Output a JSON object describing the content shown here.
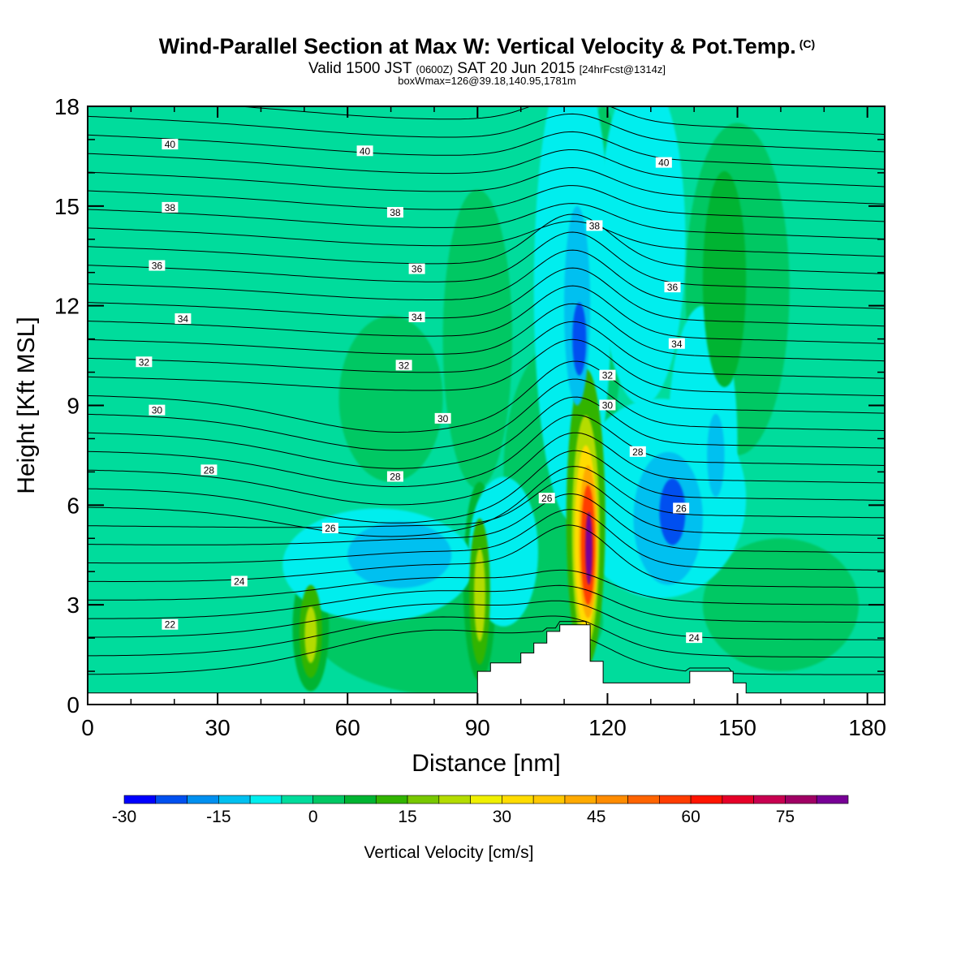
{
  "header": {
    "title": "Wind-Parallel Section at Max W: Vertical Velocity & Pot.Temp.",
    "title_mark": "(C)",
    "subtitle_part1": "Valid 1500 JST",
    "subtitle_utc": "(0600Z)",
    "subtitle_part2": "SAT 20 Jun 2015",
    "subtitle_fcst": "[24hrFcst@1314z]",
    "subtitle2": "boxWmax=126@39.18,140.95,1781m"
  },
  "chart_data": {
    "type": "heatmap",
    "xlabel": "Distance [nm]",
    "ylabel": "Height [Kft MSL]",
    "xlim": [
      0,
      184
    ],
    "ylim": [
      0,
      18
    ],
    "x_ticks": [
      0,
      30,
      60,
      90,
      120,
      150,
      180
    ],
    "y_ticks": [
      0,
      3,
      6,
      9,
      12,
      15,
      18
    ],
    "grid": false,
    "background_value_color": "#00dc9c",
    "colorbar": {
      "label": "Vertical Velocity [cm/s]",
      "tick_labels": [
        "-30",
        "-15",
        "0",
        "15",
        "30",
        "45",
        "60",
        "75"
      ],
      "tick_values": [
        -30,
        -15,
        0,
        15,
        30,
        45,
        60,
        75
      ],
      "range": [
        -30,
        85
      ],
      "bins": [
        {
          "from": -30,
          "to": -25,
          "color": "#0000ff"
        },
        {
          "from": -25,
          "to": -20,
          "color": "#0050f0"
        },
        {
          "from": -20,
          "to": -15,
          "color": "#0090f0"
        },
        {
          "from": -15,
          "to": -10,
          "color": "#00c0f0"
        },
        {
          "from": -10,
          "to": -5,
          "color": "#00eeee"
        },
        {
          "from": -5,
          "to": 0,
          "color": "#00dc9c"
        },
        {
          "from": 0,
          "to": 5,
          "color": "#00c864"
        },
        {
          "from": 5,
          "to": 10,
          "color": "#00b432"
        },
        {
          "from": 10,
          "to": 15,
          "color": "#32b400"
        },
        {
          "from": 15,
          "to": 20,
          "color": "#78c800"
        },
        {
          "from": 20,
          "to": 25,
          "color": "#b4dc00"
        },
        {
          "from": 25,
          "to": 30,
          "color": "#f0f000"
        },
        {
          "from": 30,
          "to": 35,
          "color": "#ffdc00"
        },
        {
          "from": 35,
          "to": 40,
          "color": "#ffc800"
        },
        {
          "from": 40,
          "to": 45,
          "color": "#ffaa00"
        },
        {
          "from": 45,
          "to": 50,
          "color": "#ff8c00"
        },
        {
          "from": 50,
          "to": 55,
          "color": "#ff6400"
        },
        {
          "from": 55,
          "to": 60,
          "color": "#ff3c00"
        },
        {
          "from": 60,
          "to": 65,
          "color": "#ff1400"
        },
        {
          "from": 65,
          "to": 70,
          "color": "#e60028"
        },
        {
          "from": 70,
          "to": 75,
          "color": "#c80050"
        },
        {
          "from": 75,
          "to": 80,
          "color": "#a00064"
        },
        {
          "from": 80,
          "to": 85,
          "color": "#780096"
        }
      ]
    },
    "terrain_profile": [
      [
        0,
        0.35
      ],
      [
        90,
        0.35
      ],
      [
        90,
        1.0
      ],
      [
        93,
        1.0
      ],
      [
        93,
        1.25
      ],
      [
        100,
        1.25
      ],
      [
        100,
        1.55
      ],
      [
        103,
        1.55
      ],
      [
        103,
        1.85
      ],
      [
        106,
        1.85
      ],
      [
        106,
        2.2
      ],
      [
        109,
        2.2
      ],
      [
        109,
        2.4
      ],
      [
        116,
        2.4
      ],
      [
        116,
        1.3
      ],
      [
        119,
        1.3
      ],
      [
        119,
        0.65
      ],
      [
        139,
        0.65
      ],
      [
        139,
        1.0
      ],
      [
        149,
        1.0
      ],
      [
        149,
        0.65
      ],
      [
        152,
        0.65
      ],
      [
        152,
        0.35
      ],
      [
        184,
        0.35
      ]
    ],
    "vertical_velocity_features": [
      {
        "x": 115,
        "y": 5.6,
        "width": 4.5,
        "height": 9.0,
        "value": 10
      },
      {
        "x": 115,
        "y": 5.2,
        "width": 3.2,
        "height": 7.0,
        "value": 22
      },
      {
        "x": 115,
        "y": 5.0,
        "width": 2.6,
        "height": 5.6,
        "value": 32
      },
      {
        "x": 115.5,
        "y": 4.9,
        "width": 2.1,
        "height": 4.6,
        "value": 42
      },
      {
        "x": 115.5,
        "y": 4.8,
        "width": 1.6,
        "height": 3.6,
        "value": 57
      },
      {
        "x": 115.7,
        "y": 4.7,
        "width": 0.8,
        "height": 2.2,
        "value": 82
      },
      {
        "x": 90.5,
        "y": 3.7,
        "width": 3.8,
        "height": 6.0,
        "value": 7
      },
      {
        "x": 90.5,
        "y": 3.4,
        "width": 2.4,
        "height": 4.4,
        "value": 12
      },
      {
        "x": 90.5,
        "y": 3.3,
        "width": 1.3,
        "height": 2.8,
        "value": 22
      },
      {
        "x": 51.5,
        "y": 2.3,
        "width": 4.2,
        "height": 3.8,
        "value": 7
      },
      {
        "x": 51.5,
        "y": 2.2,
        "width": 2.6,
        "height": 2.8,
        "value": 12
      },
      {
        "x": 51.5,
        "y": 2.1,
        "width": 1.4,
        "height": 1.7,
        "value": 22
      },
      {
        "x": 110,
        "y": 7.0,
        "width": 14,
        "height": 8.0,
        "value": 2
      },
      {
        "x": 85,
        "y": 2.5,
        "width": 34,
        "height": 4.5,
        "value": 2
      },
      {
        "x": 70,
        "y": 9.2,
        "width": 12,
        "height": 5.0,
        "value": 2
      },
      {
        "x": 90,
        "y": 11.0,
        "width": 8,
        "height": 9.0,
        "value": 2
      },
      {
        "x": 150,
        "y": 12.5,
        "width": 12,
        "height": 10.0,
        "value": 3
      },
      {
        "x": 147,
        "y": 12.8,
        "width": 5,
        "height": 6.5,
        "value": 8
      },
      {
        "x": 119,
        "y": 13.0,
        "width": 5,
        "height": 10.0,
        "value": 3
      },
      {
        "x": 160,
        "y": 3.0,
        "width": 18,
        "height": 4.0,
        "value": 2
      },
      {
        "x": 67,
        "y": 4.2,
        "width": 22,
        "height": 3.4,
        "value": -7
      },
      {
        "x": 72,
        "y": 4.5,
        "width": 12,
        "height": 2.0,
        "value": -12
      },
      {
        "x": 96,
        "y": 4.6,
        "width": 8,
        "height": 4.5,
        "value": -7
      },
      {
        "x": 112,
        "y": 12.5,
        "width": 9,
        "height": 14.0,
        "value": -7
      },
      {
        "x": 113,
        "y": 12.0,
        "width": 3,
        "height": 6.0,
        "value": -14
      },
      {
        "x": 113.5,
        "y": 11.0,
        "width": 1.6,
        "height": 2.2,
        "value": -22
      },
      {
        "x": 132,
        "y": 6.2,
        "width": 20,
        "height": 6.0,
        "value": -7
      },
      {
        "x": 134,
        "y": 5.6,
        "width": 8,
        "height": 4.0,
        "value": -14
      },
      {
        "x": 135,
        "y": 5.8,
        "width": 3,
        "height": 2.0,
        "value": -22
      },
      {
        "x": 128,
        "y": 14.0,
        "width": 10,
        "height": 10.0,
        "value": -7
      },
      {
        "x": 142,
        "y": 8.0,
        "width": 8,
        "height": 8.0,
        "value": -7
      },
      {
        "x": 145,
        "y": 7.5,
        "width": 2,
        "height": 2.5,
        "value": -14
      }
    ],
    "isentrope_labels": [
      {
        "text": "40",
        "x": 19,
        "y": 16.85
      },
      {
        "text": "40",
        "x": 64,
        "y": 16.65
      },
      {
        "text": "40",
        "x": 133,
        "y": 16.3
      },
      {
        "text": "38",
        "x": 19,
        "y": 14.95
      },
      {
        "text": "38",
        "x": 71,
        "y": 14.8
      },
      {
        "text": "38",
        "x": 117,
        "y": 14.4
      },
      {
        "text": "36",
        "x": 16,
        "y": 13.2
      },
      {
        "text": "36",
        "x": 76,
        "y": 13.1
      },
      {
        "text": "36",
        "x": 135,
        "y": 12.55
      },
      {
        "text": "34",
        "x": 22,
        "y": 11.6
      },
      {
        "text": "34",
        "x": 76,
        "y": 11.65
      },
      {
        "text": "34",
        "x": 136,
        "y": 10.85
      },
      {
        "text": "32",
        "x": 13,
        "y": 10.3
      },
      {
        "text": "32",
        "x": 73,
        "y": 10.2
      },
      {
        "text": "32",
        "x": 120,
        "y": 9.9
      },
      {
        "text": "30",
        "x": 16,
        "y": 8.85
      },
      {
        "text": "30",
        "x": 82,
        "y": 8.6
      },
      {
        "text": "30",
        "x": 120,
        "y": 9.0
      },
      {
        "text": "28",
        "x": 28,
        "y": 7.05
      },
      {
        "text": "28",
        "x": 71,
        "y": 6.85
      },
      {
        "text": "28",
        "x": 127,
        "y": 7.6
      },
      {
        "text": "26",
        "x": 56,
        "y": 5.3
      },
      {
        "text": "26",
        "x": 106,
        "y": 6.2
      },
      {
        "text": "26",
        "x": 137,
        "y": 5.9
      },
      {
        "text": "24",
        "x": 35,
        "y": 3.7
      },
      {
        "text": "24",
        "x": 140,
        "y": 2.0
      },
      {
        "text": "22",
        "x": 19,
        "y": 2.4
      }
    ]
  }
}
